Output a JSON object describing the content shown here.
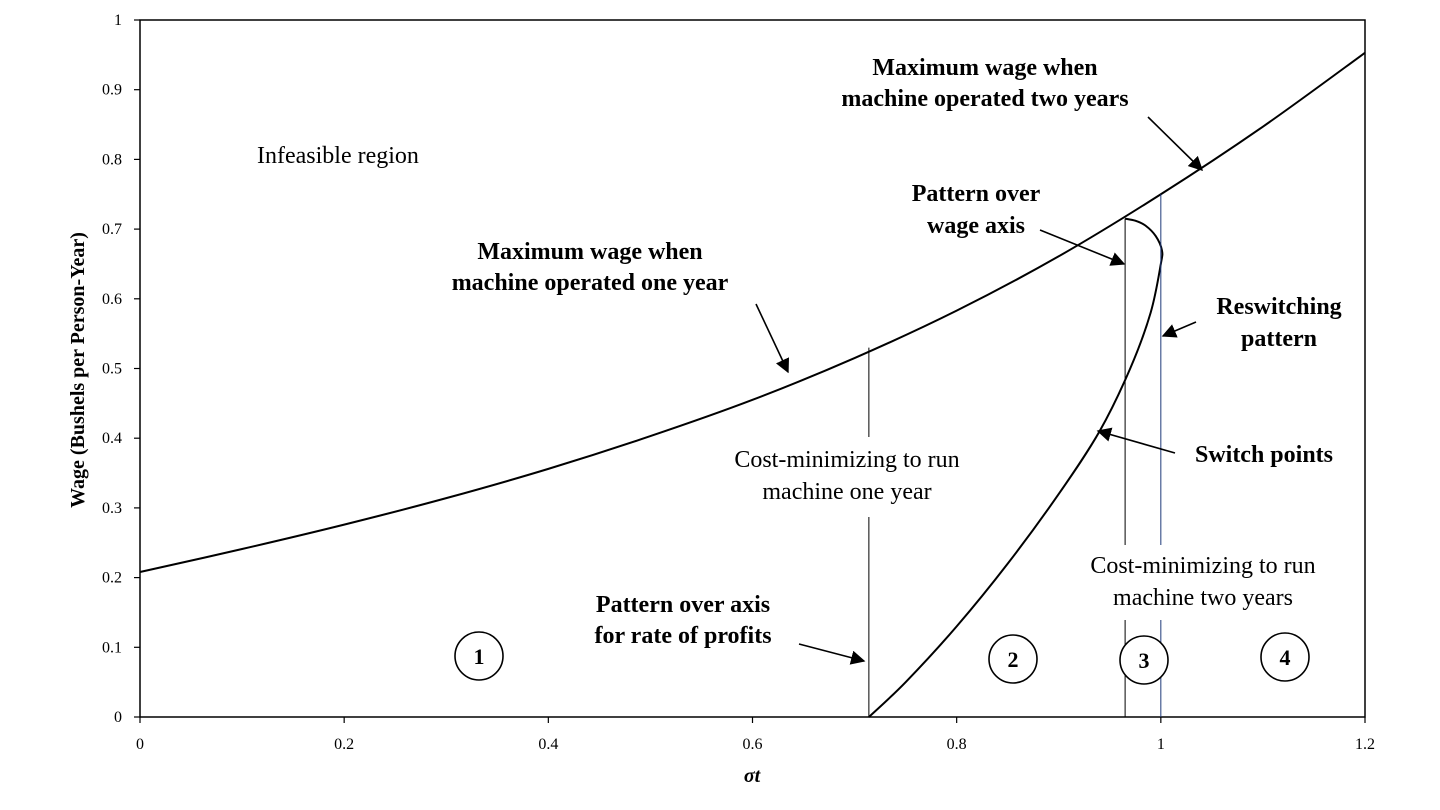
{
  "chart_data": {
    "type": "line",
    "title": "",
    "xlabel": "σt",
    "ylabel": "Wage (Bushels per Person-Year)",
    "xlim": [
      0,
      1.2
    ],
    "ylim": [
      0,
      1
    ],
    "x_ticks": [
      "0",
      "0.2",
      "0.4",
      "0.6",
      "0.8",
      "1",
      "1.2"
    ],
    "y_ticks": [
      "0",
      "0.1",
      "0.2",
      "0.3",
      "0.4",
      "0.5",
      "0.6",
      "0.7",
      "0.8",
      "0.9",
      "1"
    ],
    "grid": false,
    "series": [
      {
        "x": [
          0,
          0.1,
          0.2,
          0.3,
          0.4,
          0.5,
          0.6,
          0.7,
          0.8,
          0.9,
          1.0,
          1.1,
          1.2
        ],
        "y": [
          0.208,
          0.241,
          0.276,
          0.314,
          0.356,
          0.403,
          0.455,
          0.515,
          0.583,
          0.661,
          0.75,
          0.847,
          0.953
        ]
      },
      {
        "x": [
          0.714,
          0.75,
          0.8,
          0.85,
          0.9,
          0.94,
          0.97,
          0.99,
          1.0,
          1.001,
          0.995,
          0.985,
          0.975,
          0.965
        ],
        "y": [
          0.0,
          0.05,
          0.13,
          0.22,
          0.32,
          0.41,
          0.5,
          0.58,
          0.65,
          0.67,
          0.69,
          0.705,
          0.712,
          0.715
        ]
      }
    ],
    "vertical_lines": [
      {
        "x": 0.714,
        "y_top": 0.53
      },
      {
        "x": 0.965,
        "y_top": 0.715
      },
      {
        "x": 1.0,
        "y_top": 0.75
      }
    ],
    "annotations": {
      "infeasible": "Infeasible region",
      "max_two_line1": "Maximum wage when",
      "max_two_line2": "machine operated two years",
      "max_one_line1": "Maximum wage when",
      "max_one_line2": "machine operated one year",
      "pattern_wage_line1": "Pattern over",
      "pattern_wage_line2": "wage axis",
      "reswitch_line1": "Reswitching",
      "reswitch_line2": "pattern",
      "switch_points": "Switch points",
      "cost_one_line1": "Cost-minimizing to run",
      "cost_one_line2": "machine one year",
      "cost_two_line1": "Cost-minimizing to run",
      "cost_two_line2": "machine two years",
      "pattern_profit_line1": "Pattern over axis",
      "pattern_profit_line2": "for rate of profits"
    },
    "regions": [
      "1",
      "2",
      "3",
      "4"
    ]
  }
}
